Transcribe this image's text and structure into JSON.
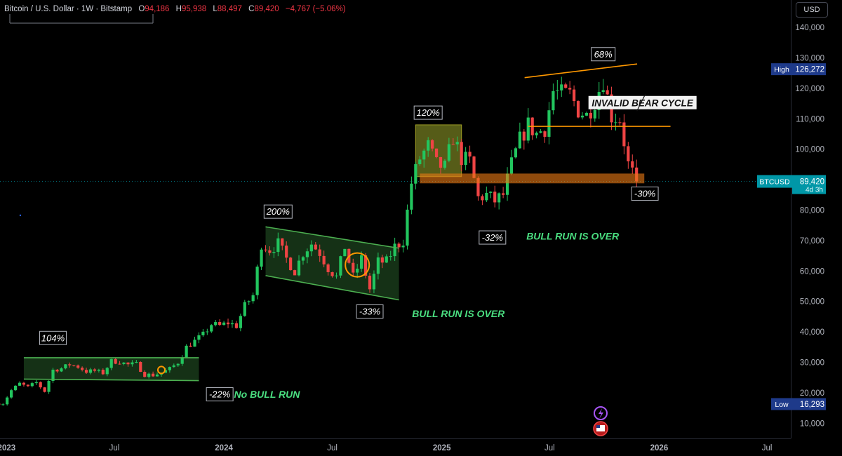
{
  "header": {
    "symbol": "Bitcoin / U.S. Dollar · 1W · Bitstamp",
    "o_label": "O",
    "o_value": "94,186",
    "h_label": "H",
    "h_value": "95,938",
    "l_label": "L",
    "l_value": "88,497",
    "c_label": "C",
    "c_value": "89,420",
    "change": "−4,767 (−5.06%)"
  },
  "currency_button": "USD",
  "colors": {
    "up": "#22c55e",
    "down": "#ef4444",
    "background": "#000000",
    "channel": "#4caf50",
    "orange": "#ff9800",
    "axis_text": "#b2b5be",
    "annotation_green": "#4ade80",
    "badge_blue": "#1e3a8a",
    "price_tag": "#0097a7"
  },
  "chart_data": {
    "type": "candlestick",
    "title": "Bitcoin / U.S. Dollar · 1W · Bitstamp",
    "ylim": [
      5000,
      149000
    ],
    "x_range": [
      "2022-12-21",
      "2026-08-10"
    ],
    "x_ticks": [
      {
        "date": "2023-01-01",
        "label": "2023",
        "bold": true
      },
      {
        "date": "2023-07-01",
        "label": "Jul",
        "bold": false
      },
      {
        "date": "2024-01-01",
        "label": "2024",
        "bold": true
      },
      {
        "date": "2024-07-01",
        "label": "Jul",
        "bold": false
      },
      {
        "date": "2025-01-01",
        "label": "2025",
        "bold": true
      },
      {
        "date": "2025-07-01",
        "label": "Jul",
        "bold": false
      },
      {
        "date": "2026-01-01",
        "label": "2026",
        "bold": true
      },
      {
        "date": "2026-07-01",
        "label": "Jul",
        "bold": false
      }
    ],
    "y_ticks": [
      10000,
      20000,
      30000,
      40000,
      50000,
      60000,
      70000,
      80000,
      90000,
      100000,
      110000,
      120000,
      130000,
      140000
    ],
    "y_tick_labels": [
      "10,000",
      "20,000",
      "30,000",
      "40,000",
      "50,000",
      "60,000",
      "70,000",
      "80,000",
      "90,000",
      "100,000",
      "110,000",
      "120,000",
      "130,000",
      "140,000"
    ],
    "closes": [
      {
        "date": "2022-12-26",
        "close": 16500
      },
      {
        "date": "2023-01-09",
        "close": 20800
      },
      {
        "date": "2023-01-23",
        "close": 23000
      },
      {
        "date": "2023-02-06",
        "close": 21800
      },
      {
        "date": "2023-02-20",
        "close": 23400
      },
      {
        "date": "2023-03-06",
        "close": 20500
      },
      {
        "date": "2023-03-20",
        "close": 27500
      },
      {
        "date": "2023-04-03",
        "close": 28000
      },
      {
        "date": "2023-04-17",
        "close": 29300
      },
      {
        "date": "2023-05-01",
        "close": 28600
      },
      {
        "date": "2023-05-15",
        "close": 27000
      },
      {
        "date": "2023-05-29",
        "close": 27200
      },
      {
        "date": "2023-06-12",
        "close": 26500
      },
      {
        "date": "2023-06-26",
        "close": 30400
      },
      {
        "date": "2023-07-10",
        "close": 30200
      },
      {
        "date": "2023-07-24",
        "close": 29200
      },
      {
        "date": "2023-08-07",
        "close": 29400
      },
      {
        "date": "2023-08-21",
        "close": 26000
      },
      {
        "date": "2023-09-04",
        "close": 25800
      },
      {
        "date": "2023-09-18",
        "close": 26600
      },
      {
        "date": "2023-10-02",
        "close": 27800
      },
      {
        "date": "2023-10-16",
        "close": 30000
      },
      {
        "date": "2023-10-30",
        "close": 35000
      },
      {
        "date": "2023-11-13",
        "close": 37000
      },
      {
        "date": "2023-11-27",
        "close": 39000
      },
      {
        "date": "2023-12-11",
        "close": 42500
      },
      {
        "date": "2023-12-25",
        "close": 42000
      },
      {
        "date": "2024-01-08",
        "close": 43000
      },
      {
        "date": "2024-01-22",
        "close": 42000
      },
      {
        "date": "2024-02-05",
        "close": 48500
      },
      {
        "date": "2024-02-19",
        "close": 52000
      },
      {
        "date": "2024-03-04",
        "close": 69000
      },
      {
        "date": "2024-03-18",
        "close": 67000
      },
      {
        "date": "2024-04-01",
        "close": 69000
      },
      {
        "date": "2024-04-15",
        "close": 64000
      },
      {
        "date": "2024-04-29",
        "close": 60000
      },
      {
        "date": "2024-05-13",
        "close": 66000
      },
      {
        "date": "2024-05-27",
        "close": 69000
      },
      {
        "date": "2024-06-10",
        "close": 66000
      },
      {
        "date": "2024-06-24",
        "close": 61000
      },
      {
        "date": "2024-07-08",
        "close": 58000
      },
      {
        "date": "2024-07-22",
        "close": 68000
      },
      {
        "date": "2024-08-05",
        "close": 58000
      },
      {
        "date": "2024-08-19",
        "close": 64000
      },
      {
        "date": "2024-09-02",
        "close": 54000
      },
      {
        "date": "2024-09-16",
        "close": 63000
      },
      {
        "date": "2024-09-30",
        "close": 63000
      },
      {
        "date": "2024-10-14",
        "close": 68000
      },
      {
        "date": "2024-10-28",
        "close": 70000
      },
      {
        "date": "2024-11-11",
        "close": 89000
      },
      {
        "date": "2024-11-25",
        "close": 97000
      },
      {
        "date": "2024-12-09",
        "close": 101000
      },
      {
        "date": "2024-12-23",
        "close": 95000
      },
      {
        "date": "2025-01-06",
        "close": 94000
      },
      {
        "date": "2025-01-20",
        "close": 104000
      },
      {
        "date": "2025-02-03",
        "close": 97000
      },
      {
        "date": "2025-02-17",
        "close": 96000
      },
      {
        "date": "2025-03-03",
        "close": 84000
      },
      {
        "date": "2025-03-17",
        "close": 85000
      },
      {
        "date": "2025-03-31",
        "close": 83000
      },
      {
        "date": "2025-04-14",
        "close": 85000
      },
      {
        "date": "2025-04-28",
        "close": 95000
      },
      {
        "date": "2025-05-12",
        "close": 103000
      },
      {
        "date": "2025-05-26",
        "close": 108000
      },
      {
        "date": "2025-06-09",
        "close": 105000
      },
      {
        "date": "2025-06-23",
        "close": 107000
      },
      {
        "date": "2025-07-07",
        "close": 119000
      },
      {
        "date": "2025-07-21",
        "close": 118000
      },
      {
        "date": "2025-08-04",
        "close": 118000
      },
      {
        "date": "2025-08-18",
        "close": 113000
      },
      {
        "date": "2025-09-01",
        "close": 111000
      },
      {
        "date": "2025-09-15",
        "close": 116000
      },
      {
        "date": "2025-09-29",
        "close": 123000
      },
      {
        "date": "2025-10-13",
        "close": 111000
      },
      {
        "date": "2025-10-27",
        "close": 110000
      },
      {
        "date": "2025-11-10",
        "close": 95000
      },
      {
        "date": "2025-11-24",
        "close": 89420
      }
    ],
    "drawings": [
      {
        "kind": "channel",
        "name": "2023 range",
        "from": "2023-01-30",
        "to": "2023-11-20",
        "top": 31500,
        "bottom": 24500,
        "top_end": 31500,
        "bottom_end": 24000
      },
      {
        "kind": "channel",
        "name": "2024 bull flag",
        "from": "2024-03-11",
        "to": "2024-10-21",
        "top": 74500,
        "bottom": 58500,
        "top_end": 67500,
        "bottom_end": 50500
      },
      {
        "kind": "box",
        "name": "2025 range",
        "from": "2024-11-18",
        "to": "2025-02-03",
        "top": 108000,
        "bottom": 91000
      },
      {
        "kind": "support_zone",
        "name": "support",
        "from": "2024-11-25",
        "to": "2025-12-07",
        "top": 92000,
        "bottom": 88800
      },
      {
        "kind": "line",
        "name": "resistance",
        "from": "2025-05-20",
        "to": "2025-11-25",
        "start": 123500,
        "end": 128000
      },
      {
        "kind": "line",
        "name": "neckline",
        "from": "2025-05-26",
        "to": "2026-01-20",
        "start": 107500,
        "end": 107500
      }
    ],
    "annotations": [
      {
        "text": "104%",
        "style": "box"
      },
      {
        "text": "-22%",
        "style": "box"
      },
      {
        "text": "No BULL RUN",
        "style": "green"
      },
      {
        "text": "200%",
        "style": "box"
      },
      {
        "text": "-33%",
        "style": "box"
      },
      {
        "text": "BULL RUN IS OVER",
        "style": "green"
      },
      {
        "text": "120%",
        "style": "box"
      },
      {
        "text": "-32%",
        "style": "box"
      },
      {
        "text": "BULL RUN IS OVER",
        "style": "green"
      },
      {
        "text": "68%",
        "style": "box"
      },
      {
        "text": "INVALID BEAR CYCLE",
        "style": "white"
      },
      {
        "text": "-30%",
        "style": "box"
      }
    ],
    "price_badges": [
      {
        "label": "High",
        "value": "126,272",
        "price": 126272
      },
      {
        "label": "BTCUSD",
        "value": "89,420",
        "sub": "4d 3h",
        "price": 89420
      },
      {
        "label": "Low",
        "value": "16,293",
        "price": 16293
      }
    ],
    "last_price": 89420
  }
}
